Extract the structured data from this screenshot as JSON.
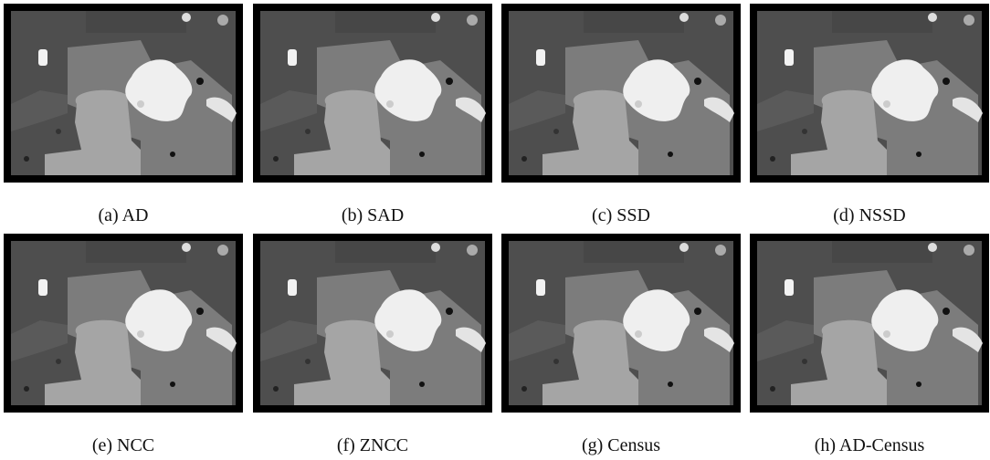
{
  "figure": {
    "panels": [
      {
        "caption": "(a) AD"
      },
      {
        "caption": "(b) SAD"
      },
      {
        "caption": "(c) SSD"
      },
      {
        "caption": "(d) NSSD"
      },
      {
        "caption": "(e) NCC"
      },
      {
        "caption": "(f) ZNCC"
      },
      {
        "caption": "(g) Census"
      },
      {
        "caption": "(h) AD-Census"
      }
    ]
  }
}
